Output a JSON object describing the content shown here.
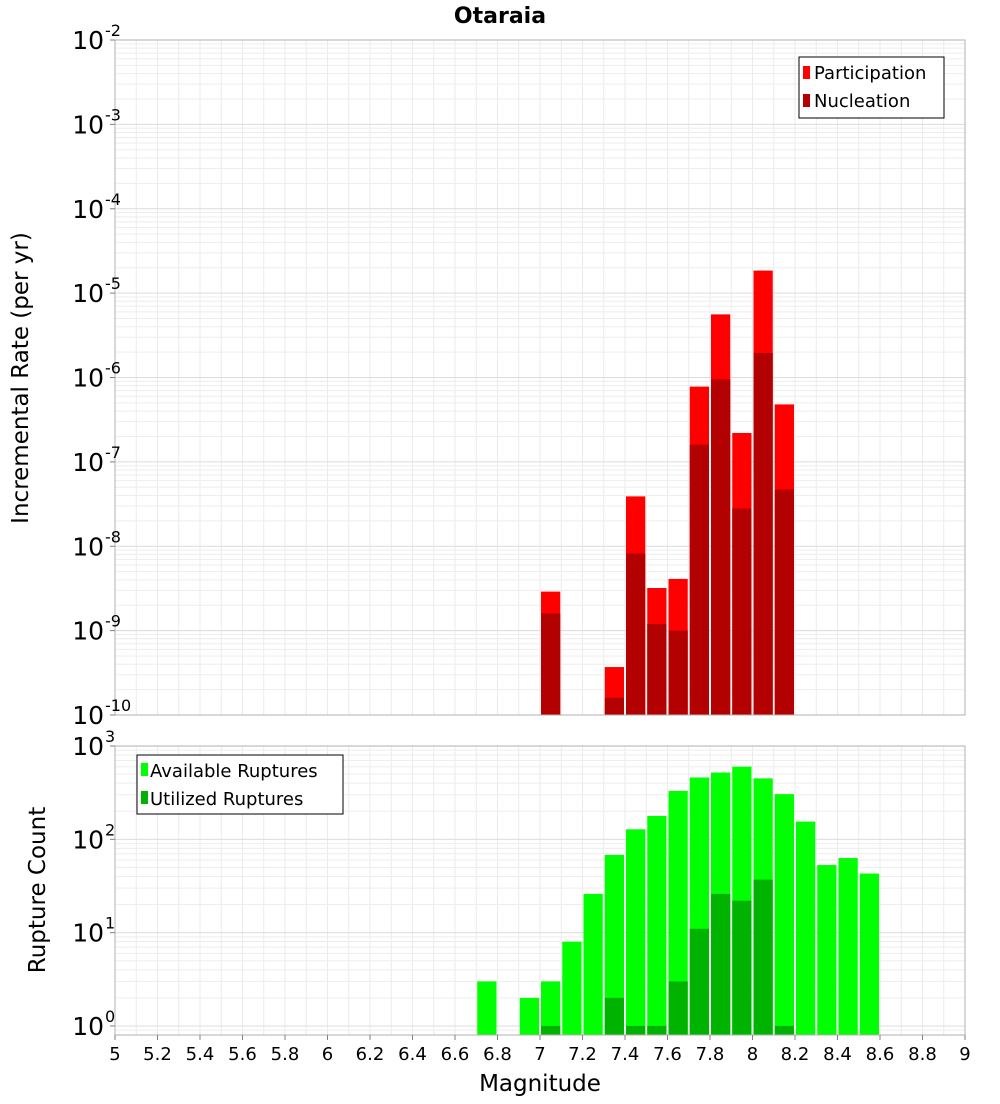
{
  "chart_data": [
    {
      "type": "bar",
      "title": "Otaraia",
      "ylabel": "Incremental Rate (per yr)",
      "xlabel": "",
      "x_range": [
        5,
        9
      ],
      "y_scale": "log",
      "ylim": [
        1e-10,
        0.01
      ],
      "y_tick_exponents": [
        -10,
        -9,
        -8,
        -7,
        -6,
        -5,
        -4,
        -3,
        -2
      ],
      "bar_width": 0.1,
      "grid": true,
      "legend_position": "top-right",
      "series": [
        {
          "name": "Participation",
          "color": "#ff0000",
          "points": [
            {
              "x": 7.05,
              "y": 2.9e-09
            },
            {
              "x": 7.35,
              "y": 3.7e-10
            },
            {
              "x": 7.45,
              "y": 3.9e-08
            },
            {
              "x": 7.55,
              "y": 3.2e-09
            },
            {
              "x": 7.65,
              "y": 4.1e-09
            },
            {
              "x": 7.75,
              "y": 7.8e-07
            },
            {
              "x": 7.85,
              "y": 5.6e-06
            },
            {
              "x": 7.95,
              "y": 2.2e-07
            },
            {
              "x": 8.05,
              "y": 1.85e-05
            },
            {
              "x": 8.15,
              "y": 4.8e-07
            }
          ]
        },
        {
          "name": "Nucleation",
          "color": "#b30000",
          "points": [
            {
              "x": 7.05,
              "y": 1.6e-09
            },
            {
              "x": 7.35,
              "y": 1.6e-10
            },
            {
              "x": 7.45,
              "y": 8.2e-09
            },
            {
              "x": 7.55,
              "y": 1.2e-09
            },
            {
              "x": 7.65,
              "y": 1e-09
            },
            {
              "x": 7.75,
              "y": 1.6e-07
            },
            {
              "x": 7.85,
              "y": 9.5e-07
            },
            {
              "x": 7.95,
              "y": 2.8e-08
            },
            {
              "x": 8.05,
              "y": 1.95e-06
            },
            {
              "x": 8.15,
              "y": 4.7e-08
            }
          ]
        }
      ]
    },
    {
      "type": "bar",
      "title": "",
      "ylabel": "Rupture Count",
      "xlabel": "Magnitude",
      "x_range": [
        5,
        9
      ],
      "x_ticks": [
        "5",
        "5.2",
        "5.4",
        "5.6",
        "5.8",
        "6",
        "6.2",
        "6.4",
        "6.6",
        "6.8",
        "7",
        "7.2",
        "7.4",
        "7.6",
        "7.8",
        "8",
        "8.2",
        "8.4",
        "8.6",
        "8.8",
        "9"
      ],
      "y_scale": "log",
      "ylim": [
        0.8,
        1000
      ],
      "y_tick_exponents": [
        0,
        1,
        2,
        3
      ],
      "bar_width": 0.1,
      "grid": true,
      "legend_position": "top-left",
      "series": [
        {
          "name": "Available Ruptures",
          "color": "#00ff00",
          "points": [
            {
              "x": 6.75,
              "y": 3
            },
            {
              "x": 6.95,
              "y": 2
            },
            {
              "x": 7.05,
              "y": 3
            },
            {
              "x": 7.15,
              "y": 8
            },
            {
              "x": 7.25,
              "y": 26
            },
            {
              "x": 7.35,
              "y": 68
            },
            {
              "x": 7.45,
              "y": 128
            },
            {
              "x": 7.55,
              "y": 178
            },
            {
              "x": 7.65,
              "y": 330
            },
            {
              "x": 7.75,
              "y": 460
            },
            {
              "x": 7.85,
              "y": 520
            },
            {
              "x": 7.95,
              "y": 600
            },
            {
              "x": 8.05,
              "y": 450
            },
            {
              "x": 8.15,
              "y": 305
            },
            {
              "x": 8.25,
              "y": 155
            },
            {
              "x": 8.35,
              "y": 53
            },
            {
              "x": 8.45,
              "y": 63
            },
            {
              "x": 8.55,
              "y": 43
            }
          ]
        },
        {
          "name": "Utilized Ruptures",
          "color": "#00b300",
          "points": [
            {
              "x": 7.05,
              "y": 1
            },
            {
              "x": 7.35,
              "y": 2
            },
            {
              "x": 7.45,
              "y": 1
            },
            {
              "x": 7.55,
              "y": 1
            },
            {
              "x": 7.65,
              "y": 3
            },
            {
              "x": 7.75,
              "y": 11
            },
            {
              "x": 7.85,
              "y": 26
            },
            {
              "x": 7.95,
              "y": 22
            },
            {
              "x": 8.05,
              "y": 37
            },
            {
              "x": 8.15,
              "y": 1
            }
          ]
        }
      ]
    }
  ]
}
